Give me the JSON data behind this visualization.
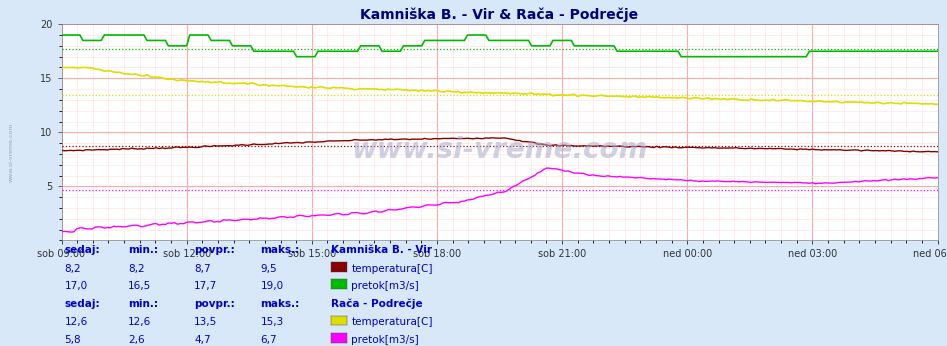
{
  "title": "Kamniška B. - Vir & Rača - Podrečje",
  "title_color": "#000080",
  "bg_color": "#d8e8f8",
  "plot_bg_color": "#ffffff",
  "grid_major_color": "#ffaaaa",
  "grid_minor_color": "#ffe0e0",
  "xticklabels": [
    "sob 09:00",
    "sob 12:00",
    "sob 15:00",
    "sob 18:00",
    "sob 21:00",
    "ned 00:00",
    "ned 03:00",
    "ned 06:00"
  ],
  "yticks": [
    5,
    10,
    15,
    20
  ],
  "ymin": 0,
  "ymax": 20,
  "watermark": "www.si-vreme.com",
  "series": {
    "kamniska_temp": {
      "color": "#880000",
      "avg_line": 8.7,
      "label": "temperatura[C]",
      "sedaj": "8,2",
      "min": "8,2",
      "povpr": "8,7",
      "maks": "9,5"
    },
    "kamniska_pretok": {
      "color": "#00bb00",
      "avg_line": 17.7,
      "label": "pretok[m3/s]",
      "sedaj": "17,0",
      "min": "16,5",
      "povpr": "17,7",
      "maks": "19,0"
    },
    "raca_temp": {
      "color": "#dddd00",
      "avg_line": 13.5,
      "label": "temperatura[C]",
      "sedaj": "12,6",
      "min": "12,6",
      "povpr": "13,5",
      "maks": "15,3"
    },
    "raca_pretok": {
      "color": "#ff00ff",
      "avg_line": 4.7,
      "label": "pretok[m3/s]",
      "sedaj": "5,8",
      "min": "2,6",
      "povpr": "4,7",
      "maks": "6,7"
    }
  },
  "legend_section1_title": "Kamniška B. - Vir",
  "legend_section2_title": "Rača - Podrečje",
  "legend_headers": [
    "sedaj:",
    "min.:",
    "povpr.:",
    "maks.:"
  ],
  "legend_color": "#0000cc",
  "n_points": 288
}
